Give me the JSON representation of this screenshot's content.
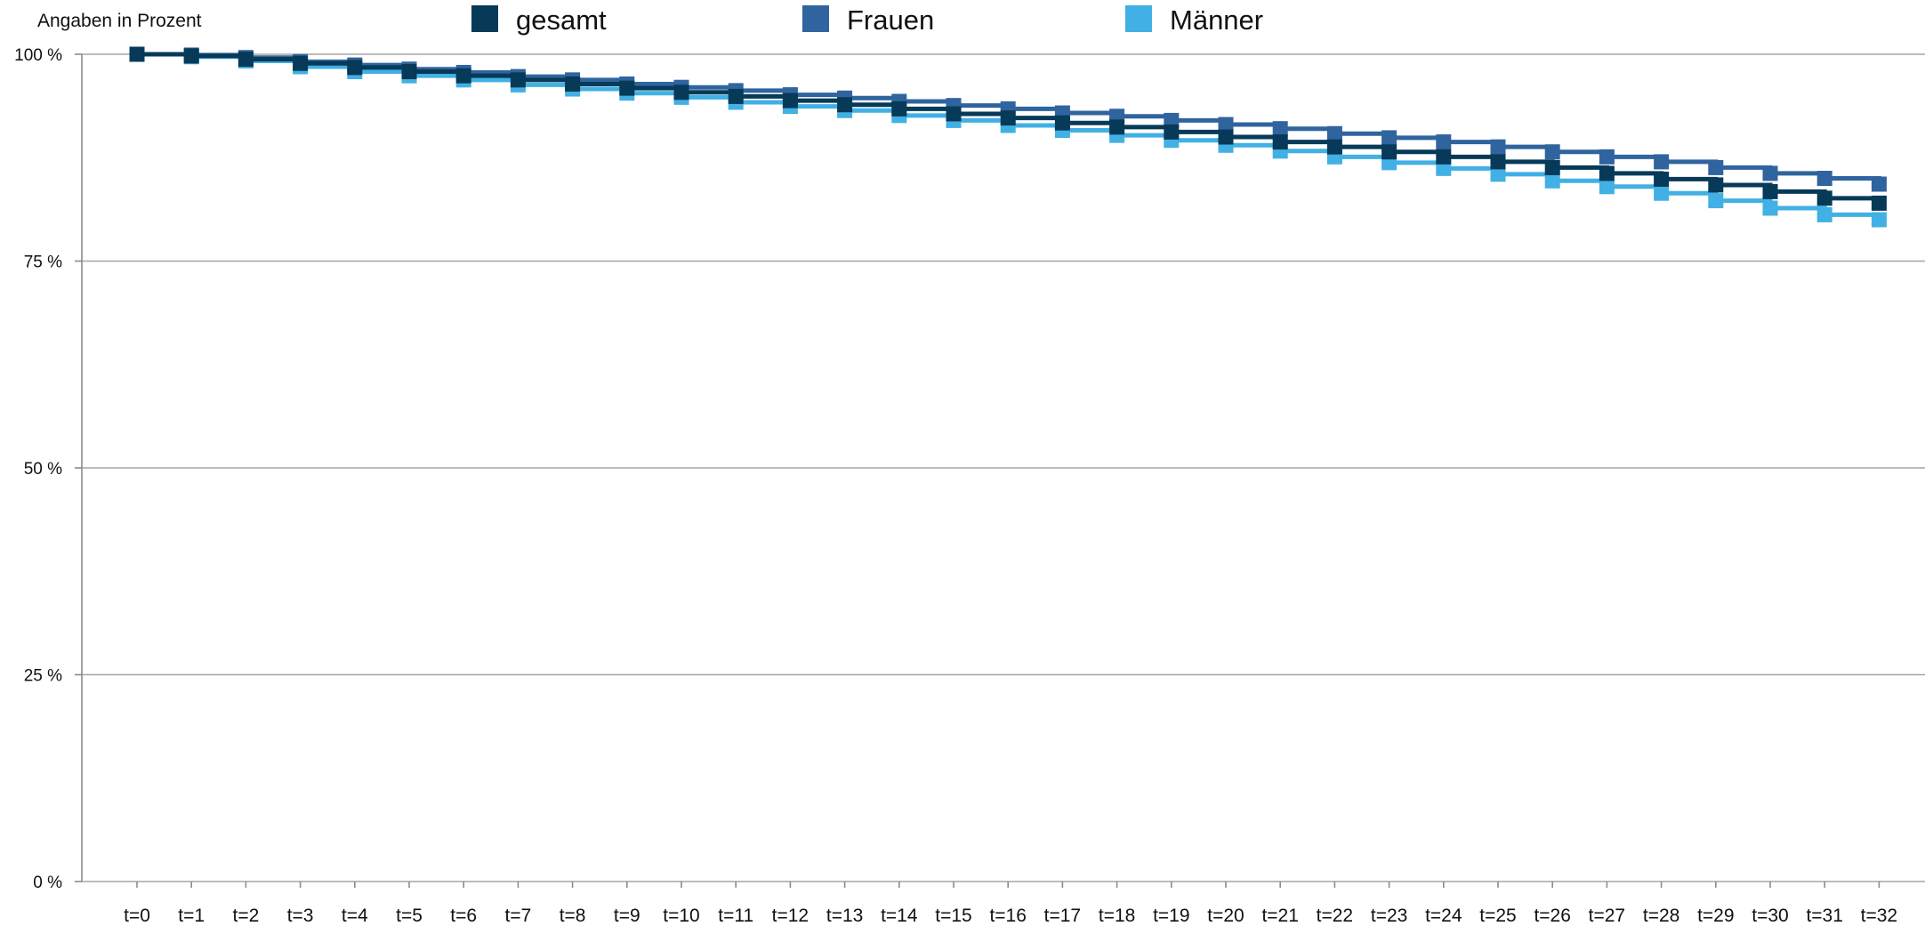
{
  "chart_data": {
    "type": "line",
    "step": true,
    "unit_label": "Angaben in Prozent",
    "categories": [
      "t=0",
      "t=1",
      "t=2",
      "t=3",
      "t=4",
      "t=5",
      "t=6",
      "t=7",
      "t=8",
      "t=9",
      "t=10",
      "t=11",
      "t=12",
      "t=13",
      "t=14",
      "t=15",
      "t=16",
      "t=17",
      "t=18",
      "t=19",
      "t=20",
      "t=21",
      "t=22",
      "t=23",
      "t=24",
      "t=25",
      "t=26",
      "t=27",
      "t=28",
      "t=29",
      "t=30",
      "t=31",
      "t=32"
    ],
    "y_ticks": [
      {
        "value": 100,
        "label": "100 %"
      },
      {
        "value": 75,
        "label": "75 %"
      },
      {
        "value": 50,
        "label": "50 %"
      },
      {
        "value": 25,
        "label": "25 %"
      },
      {
        "value": 0,
        "label": "0 %"
      }
    ],
    "ylim": [
      0,
      100
    ],
    "grid": true,
    "legend_position": "top",
    "series": [
      {
        "name": "gesamt",
        "color": "#063a58",
        "values": [
          100,
          99.8,
          99.4,
          98.9,
          98.4,
          97.9,
          97.4,
          96.9,
          96.4,
          95.9,
          95.4,
          94.9,
          94.4,
          93.9,
          93.4,
          92.8,
          92.3,
          91.7,
          91.2,
          90.6,
          90.0,
          89.4,
          88.8,
          88.2,
          87.6,
          87.0,
          86.3,
          85.6,
          84.9,
          84.2,
          83.4,
          82.6,
          82.0
        ]
      },
      {
        "name": "Frauen",
        "color": "#2f649f",
        "values": [
          100,
          99.9,
          99.6,
          99.1,
          98.7,
          98.2,
          97.8,
          97.3,
          96.9,
          96.4,
          96.0,
          95.6,
          95.1,
          94.7,
          94.3,
          93.8,
          93.4,
          92.9,
          92.5,
          92.0,
          91.5,
          91.0,
          90.4,
          89.9,
          89.4,
          88.8,
          88.2,
          87.6,
          87.0,
          86.3,
          85.6,
          85.0,
          84.3
        ]
      },
      {
        "name": "Männer",
        "color": "#41b0e4",
        "values": [
          100,
          99.7,
          99.2,
          98.5,
          97.9,
          97.4,
          96.9,
          96.3,
          95.8,
          95.3,
          94.8,
          94.2,
          93.7,
          93.2,
          92.6,
          92.0,
          91.4,
          90.8,
          90.2,
          89.6,
          89.0,
          88.3,
          87.6,
          86.9,
          86.2,
          85.5,
          84.7,
          84.0,
          83.2,
          82.3,
          81.4,
          80.6,
          80.0
        ]
      }
    ]
  }
}
